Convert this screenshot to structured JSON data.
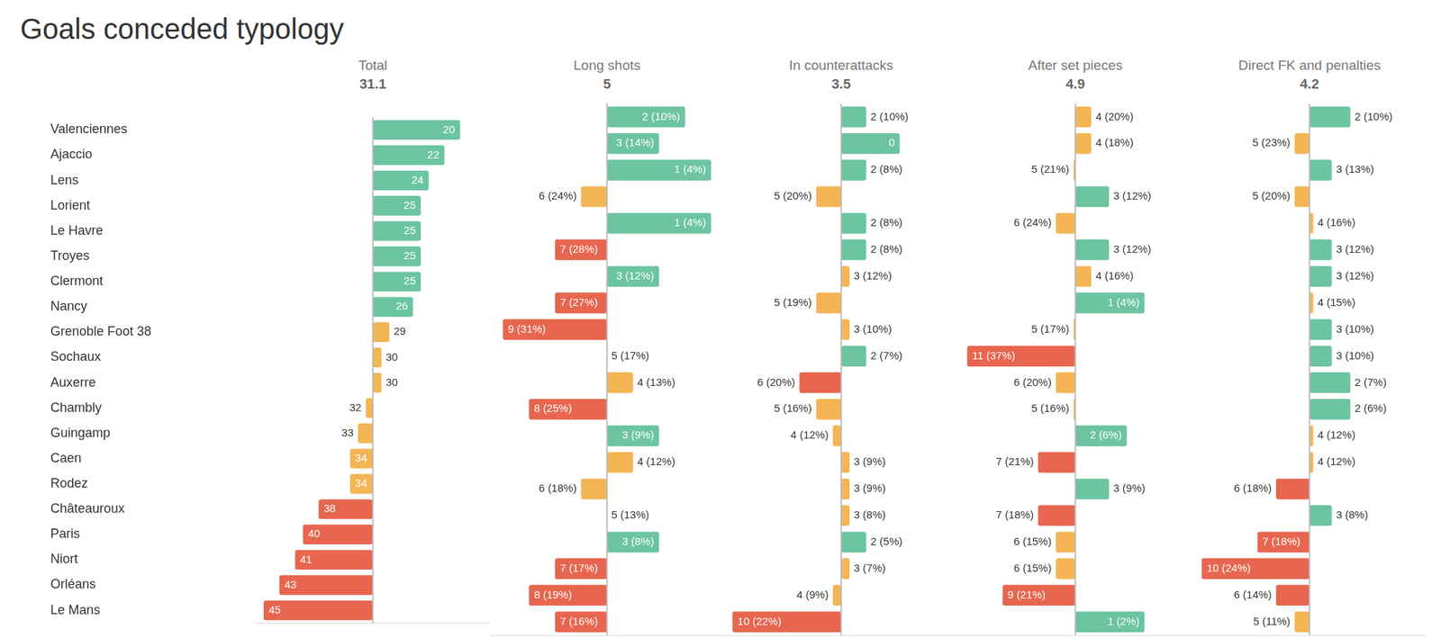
{
  "title": "Goals conceded typology",
  "chart_data": [
    {
      "type": "bar",
      "orientation": "horizontal",
      "title": "Total",
      "average": 31.1,
      "categories": [
        "Valenciennes",
        "Ajaccio",
        "Lens",
        "Lorient",
        "Le Havre",
        "Troyes",
        "Clermont",
        "Nancy",
        "Grenoble Foot 38",
        "Sochaux",
        "Auxerre",
        "Chambly",
        "Guingamp",
        "Caen",
        "Rodez",
        "Châteauroux",
        "Paris",
        "Niort",
        "Orléans",
        "Le Mans"
      ],
      "values": [
        20,
        22,
        24,
        25,
        25,
        25,
        25,
        26,
        29,
        30,
        30,
        32,
        33,
        34,
        34,
        38,
        40,
        41,
        43,
        45
      ],
      "colors": [
        "#6cc4a1",
        "#6cc4a1",
        "#6cc4a1",
        "#6cc4a1",
        "#6cc4a1",
        "#6cc4a1",
        "#6cc4a1",
        "#6cc4a1",
        "#f4b554",
        "#f4b554",
        "#f4b554",
        "#f4b554",
        "#f4b554",
        "#f4b554",
        "#f4b554",
        "#e8664f",
        "#e8664f",
        "#e8664f",
        "#e8664f",
        "#e8664f"
      ],
      "xlim": [
        46,
        16.2
      ],
      "data_labels": true,
      "tick_labels": "y"
    },
    {
      "type": "bar",
      "orientation": "horizontal",
      "title": "Long shots",
      "average": 5,
      "categories": [
        "Valenciennes",
        "Ajaccio",
        "Lens",
        "Lorient",
        "Le Havre",
        "Troyes",
        "Clermont",
        "Nancy",
        "Grenoble Foot 38",
        "Sochaux",
        "Auxerre",
        "Chambly",
        "Guingamp",
        "Caen",
        "Rodez",
        "Châteauroux",
        "Paris",
        "Niort",
        "Orléans",
        "Le Mans"
      ],
      "values": [
        2,
        3,
        1,
        6,
        1,
        7,
        3,
        7,
        9,
        5,
        4,
        8,
        3,
        4,
        6,
        5,
        3,
        7,
        8,
        7
      ],
      "value_labels": [
        "2 (10%)",
        "3 (14%)",
        "1 (4%)",
        "6 (24%)",
        "1 (4%)",
        "7 (28%)",
        "3 (12%)",
        "7 (27%)",
        "9 (31%)",
        "5 (17%)",
        "4 (13%)",
        "8 (25%)",
        "3 (9%)",
        "4 (12%)",
        "6 (18%)",
        "5 (13%)",
        "3 (8%)",
        "7 (17%)",
        "8 (19%)",
        "7 (16%)"
      ],
      "colors": [
        "#6cc4a1",
        "#6cc4a1",
        "#6cc4a1",
        "#f4b554",
        "#6cc4a1",
        "#e8664f",
        "#6cc4a1",
        "#e8664f",
        "#e8664f",
        "#f4b554",
        "#f4b554",
        "#e8664f",
        "#6cc4a1",
        "#f4b554",
        "#f4b554",
        "#f4b554",
        "#6cc4a1",
        "#e8664f",
        "#e8664f",
        "#e8664f"
      ],
      "xlim": [
        9.5,
        0.5
      ],
      "data_labels": true,
      "tick_labels": false
    },
    {
      "type": "bar",
      "orientation": "horizontal",
      "title": "In counterattacks",
      "average": 3.5,
      "categories": [
        "Valenciennes",
        "Ajaccio",
        "Lens",
        "Lorient",
        "Le Havre",
        "Troyes",
        "Clermont",
        "Nancy",
        "Grenoble Foot 38",
        "Sochaux",
        "Auxerre",
        "Chambly",
        "Guingamp",
        "Caen",
        "Rodez",
        "Châteauroux",
        "Paris",
        "Niort",
        "Orléans",
        "Le Mans"
      ],
      "values": [
        2,
        0,
        2,
        5,
        2,
        2,
        3,
        5,
        3,
        2,
        6,
        5,
        4,
        3,
        3,
        3,
        2,
        3,
        4,
        10
      ],
      "value_labels": [
        "2 (10%)",
        "0",
        "2 (8%)",
        "5 (20%)",
        "2 (8%)",
        "2 (8%)",
        "3 (12%)",
        "5 (19%)",
        "3 (10%)",
        "2 (7%)",
        "6 (20%)",
        "5 (16%)",
        "4 (12%)",
        "3 (9%)",
        "3 (9%)",
        "3 (8%)",
        "2 (5%)",
        "3 (7%)",
        "4 (9%)",
        "10 (22%)"
      ],
      "colors": [
        "#6cc4a1",
        "#6cc4a1",
        "#6cc4a1",
        "#f4b554",
        "#6cc4a1",
        "#6cc4a1",
        "#f4b554",
        "#f4b554",
        "#f4b554",
        "#6cc4a1",
        "#e8664f",
        "#f4b554",
        "#f4b554",
        "#f4b554",
        "#f4b554",
        "#f4b554",
        "#6cc4a1",
        "#f4b554",
        "#f4b554",
        "#e8664f"
      ],
      "xlim": [
        10.5,
        -3.5
      ],
      "data_labels": true,
      "tick_labels": false
    },
    {
      "type": "bar",
      "orientation": "horizontal",
      "title": "After set pieces",
      "average": 4.9,
      "categories": [
        "Valenciennes",
        "Ajaccio",
        "Lens",
        "Lorient",
        "Le Havre",
        "Troyes",
        "Clermont",
        "Nancy",
        "Grenoble Foot 38",
        "Sochaux",
        "Auxerre",
        "Chambly",
        "Guingamp",
        "Caen",
        "Rodez",
        "Châteauroux",
        "Paris",
        "Niort",
        "Orléans",
        "Le Mans"
      ],
      "values": [
        4,
        4,
        5,
        3,
        6,
        3,
        4,
        1,
        5,
        11,
        6,
        5,
        2,
        7,
        3,
        7,
        6,
        6,
        9,
        1
      ],
      "value_labels": [
        "4 (20%)",
        "4 (18%)",
        "5 (21%)",
        "3 (12%)",
        "6 (24%)",
        "3 (12%)",
        "4 (16%)",
        "1 (4%)",
        "5 (17%)",
        "11 (37%)",
        "6 (20%)",
        "5 (16%)",
        "2 (6%)",
        "7 (21%)",
        "3 (9%)",
        "7 (18%)",
        "6 (15%)",
        "6 (15%)",
        "9 (21%)",
        "1 (2%)"
      ],
      "colors": [
        "#f4b554",
        "#f4b554",
        "#f4b554",
        "#6cc4a1",
        "#f4b554",
        "#6cc4a1",
        "#f4b554",
        "#6cc4a1",
        "#f4b554",
        "#e8664f",
        "#f4b554",
        "#f4b554",
        "#6cc4a1",
        "#e8664f",
        "#6cc4a1",
        "#e8664f",
        "#f4b554",
        "#f4b554",
        "#e8664f",
        "#6cc4a1"
      ],
      "xlim": [
        11.5,
        -1.7
      ],
      "data_labels": true,
      "tick_labels": false
    },
    {
      "type": "bar",
      "orientation": "horizontal",
      "title": "Direct FK and penalties",
      "average": 4.2,
      "categories": [
        "Valenciennes",
        "Ajaccio",
        "Lens",
        "Lorient",
        "Le Havre",
        "Troyes",
        "Clermont",
        "Nancy",
        "Grenoble Foot 38",
        "Sochaux",
        "Auxerre",
        "Chambly",
        "Guingamp",
        "Caen",
        "Rodez",
        "Châteauroux",
        "Paris",
        "Niort",
        "Orléans",
        "Le Mans"
      ],
      "values": [
        2,
        5,
        3,
        5,
        4,
        3,
        3,
        4,
        3,
        3,
        2,
        2,
        4,
        4,
        6,
        3,
        7,
        10,
        6,
        5
      ],
      "value_labels": [
        "2 (10%)",
        "5 (23%)",
        "3 (13%)",
        "5 (20%)",
        "4 (16%)",
        "3 (12%)",
        "3 (12%)",
        "4 (15%)",
        "3 (10%)",
        "3 (10%)",
        "2 (7%)",
        "2 (6%)",
        "4 (12%)",
        "4 (12%)",
        "6 (18%)",
        "3 (8%)",
        "7 (18%)",
        "10 (24%)",
        "6 (14%)",
        "5 (11%)"
      ],
      "colors": [
        "#6cc4a1",
        "#f4b554",
        "#6cc4a1",
        "#f4b554",
        "#f4b554",
        "#6cc4a1",
        "#6cc4a1",
        "#f4b554",
        "#6cc4a1",
        "#6cc4a1",
        "#6cc4a1",
        "#6cc4a1",
        "#f4b554",
        "#f4b554",
        "#e8664f",
        "#6cc4a1",
        "#e8664f",
        "#e8664f",
        "#e8664f",
        "#f4b554"
      ],
      "xlim": [
        10.5,
        -2.1
      ],
      "data_labels": true,
      "tick_labels": false
    }
  ]
}
